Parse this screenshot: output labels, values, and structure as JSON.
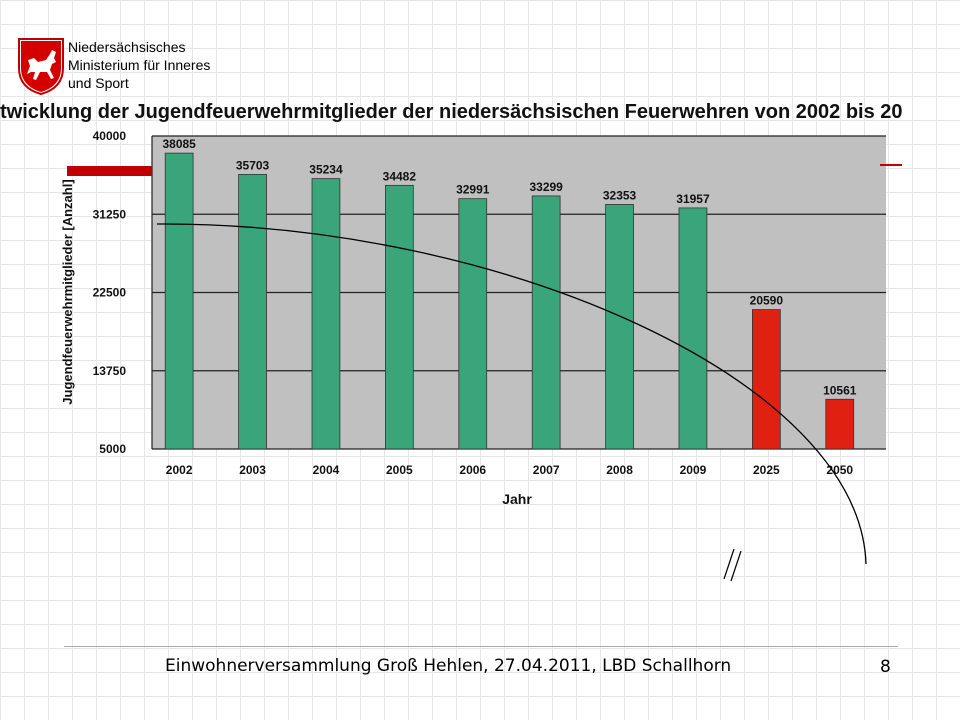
{
  "header": {
    "org_lines": [
      "Niedersächsisches",
      "Ministerium  für Inneres",
      "und Sport"
    ]
  },
  "colors": {
    "background_chart": "#c0c0c0",
    "bar_actual": "#3aa57a",
    "bar_forecast": "#e02010",
    "accent_red": "#c00000"
  },
  "chart_data": {
    "type": "bar",
    "title": "twicklung der Jugendfeuerwehrmitglieder der niedersächsischen Feuerwehren von 2002 bis 20",
    "xlabel": "Jahr",
    "ylabel": "Jugendfeuerwehrmitglieder [Anzahl]",
    "categories": [
      "2002",
      "2003",
      "2004",
      "2005",
      "2006",
      "2007",
      "2008",
      "2009",
      "2025",
      "2050"
    ],
    "values": [
      38085,
      35703,
      35234,
      34482,
      32991,
      33299,
      32353,
      31957,
      20590,
      10561
    ],
    "value_labels": [
      "38085",
      "35703",
      "35234",
      "34482",
      "32991",
      "33299",
      "32353",
      "31957",
      "20590",
      "10561"
    ],
    "forecast": [
      false,
      false,
      false,
      false,
      false,
      false,
      false,
      false,
      true,
      true
    ],
    "ylim": [
      5000,
      40000
    ],
    "yticks": [
      "5000",
      "13750",
      "22500",
      "31250",
      "40000"
    ],
    "grid": true
  },
  "footer": {
    "text": "Einwohnerversammlung Groß Hehlen, 27.04.2011, LBD Schallhorn",
    "page_number": "8"
  }
}
